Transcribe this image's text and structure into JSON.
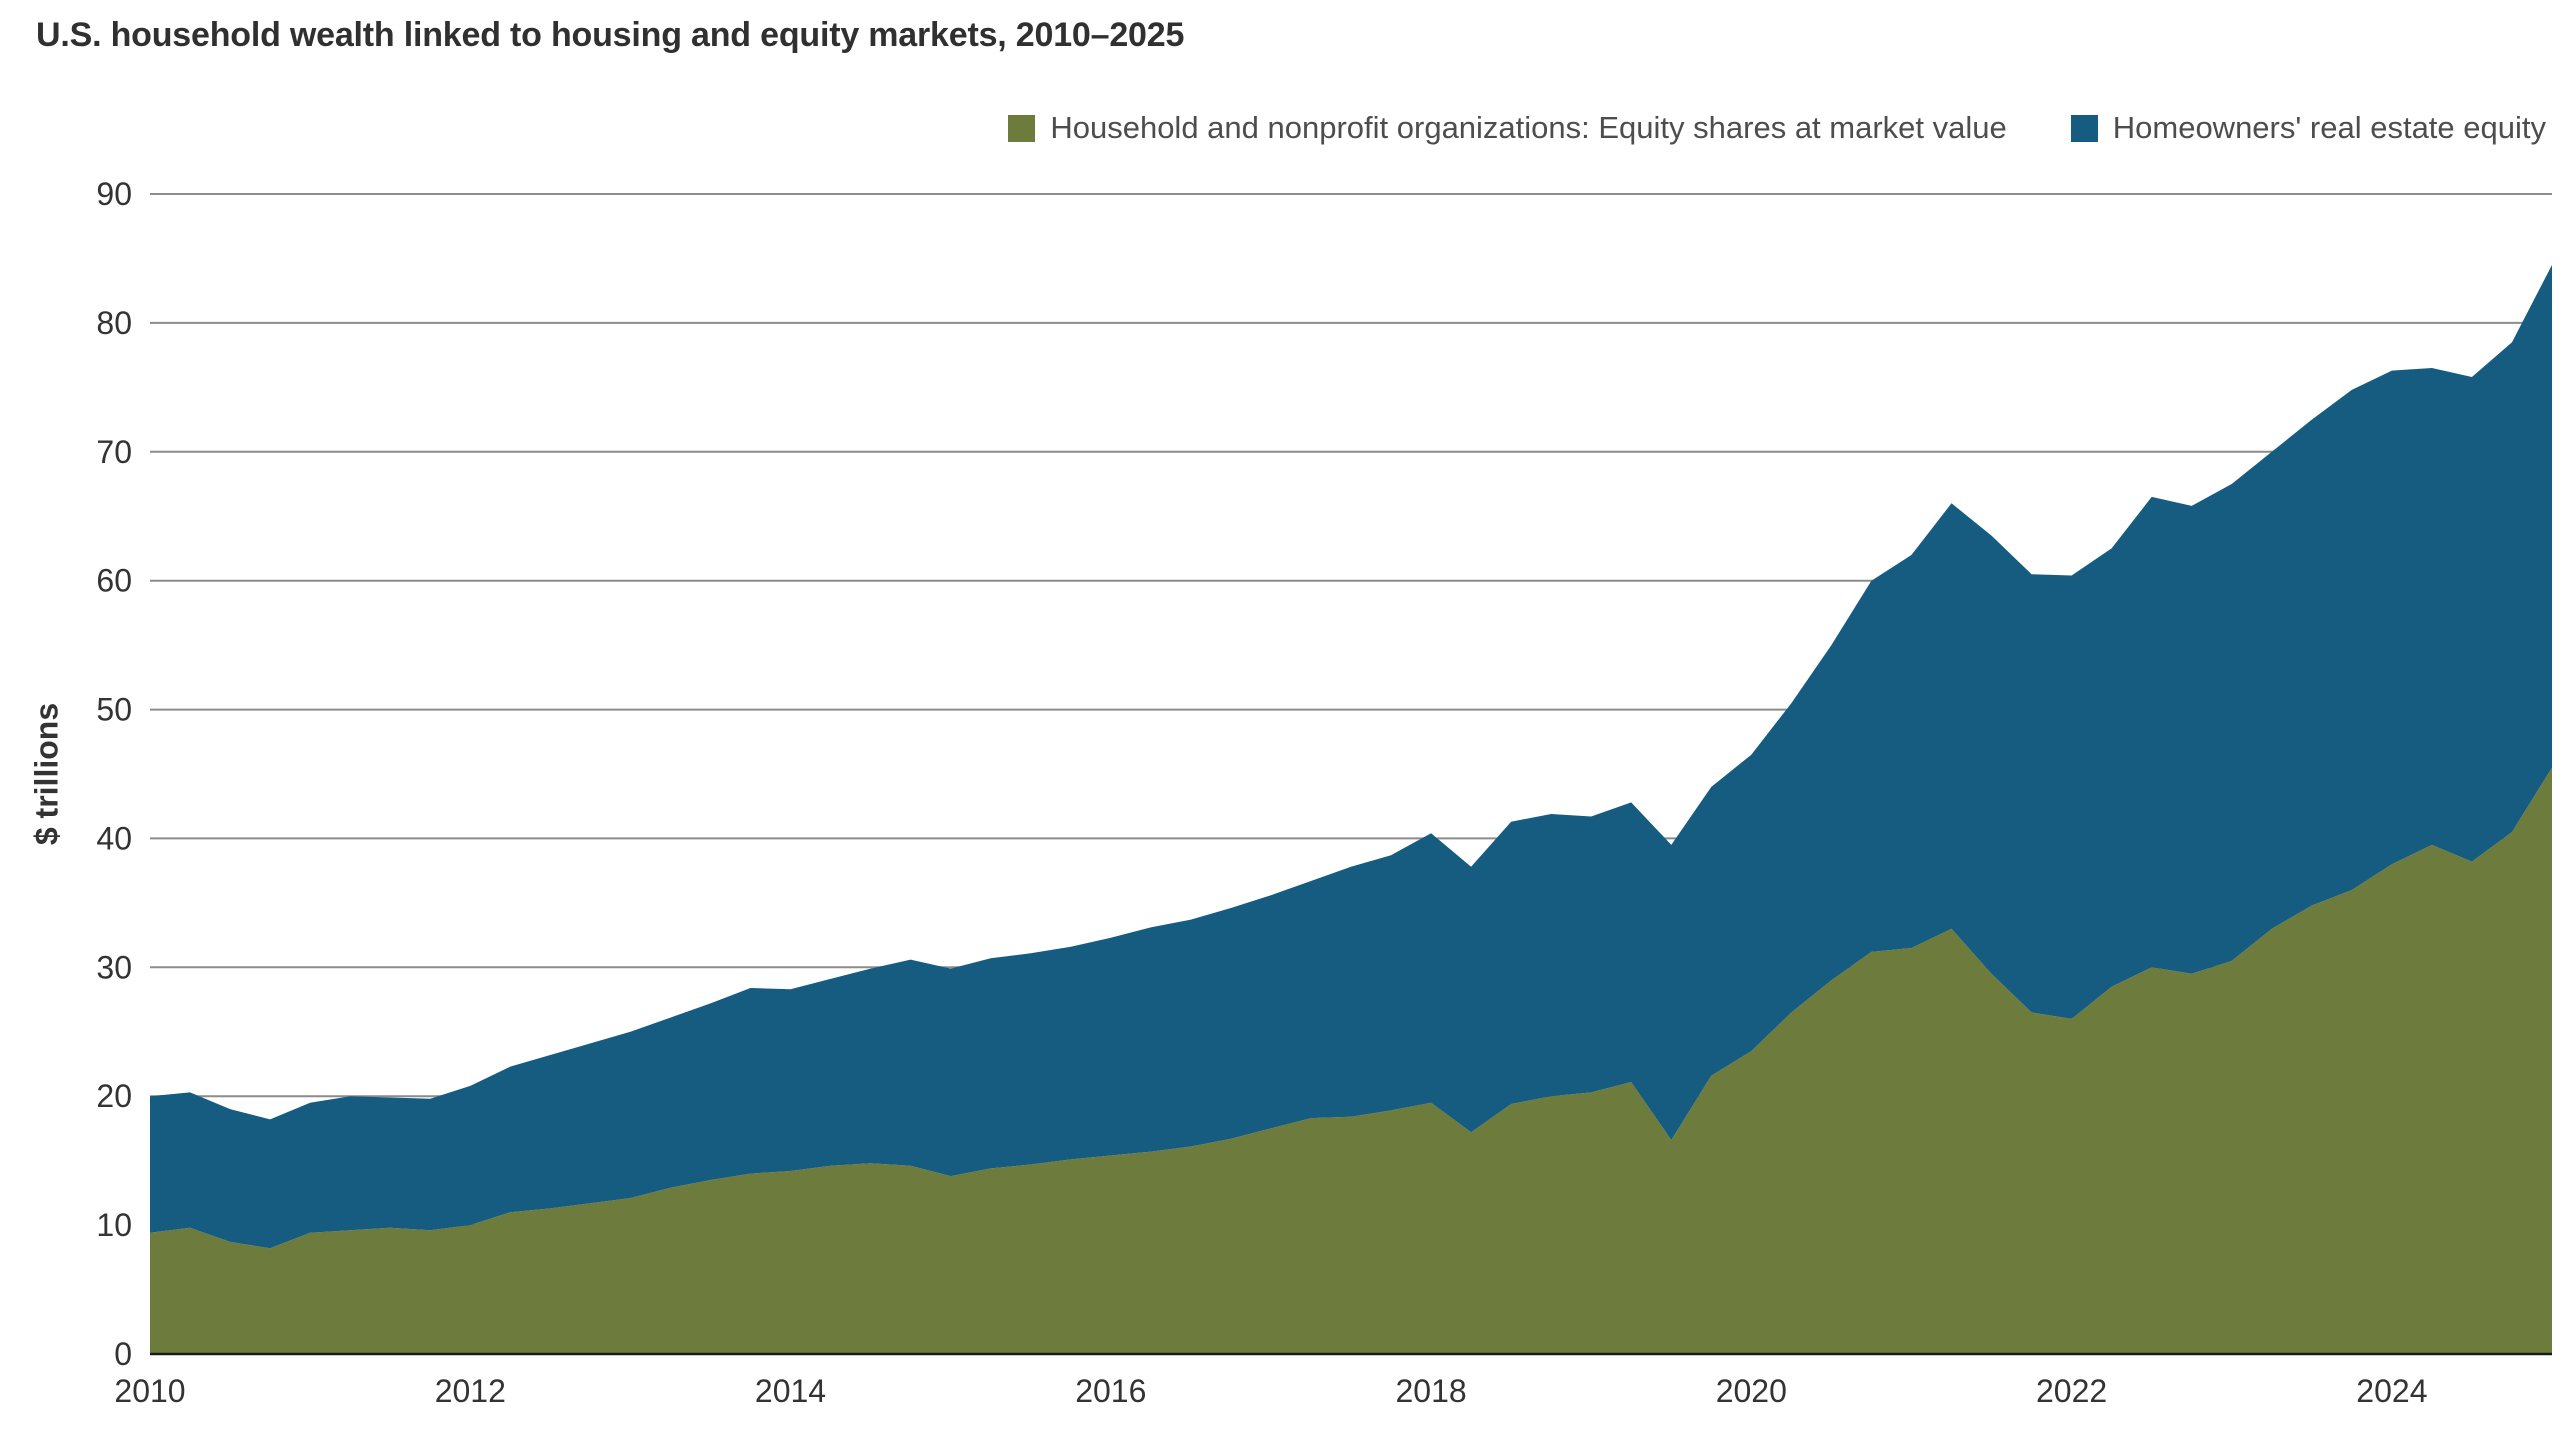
{
  "chart_data": {
    "type": "area",
    "stacked": true,
    "title": "U.S. household wealth linked to housing and equity markets, 2010–2025",
    "xlabel": "",
    "ylabel": "$ trillions",
    "x_range": [
      2010,
      2025
    ],
    "ylim": [
      0,
      90
    ],
    "yticks": [
      0,
      10,
      20,
      30,
      40,
      50,
      60,
      70,
      80,
      90
    ],
    "xticks": [
      2010,
      2012,
      2014,
      2016,
      2018,
      2020,
      2022,
      2024
    ],
    "grid": "horizontal",
    "grid_color": "#8c8c8c",
    "axis_color": "#1a1a1a",
    "background": "#ffffff",
    "legend_position": "top-right",
    "x": [
      2010.0,
      2010.25,
      2010.5,
      2010.75,
      2011.0,
      2011.25,
      2011.5,
      2011.75,
      2012.0,
      2012.25,
      2012.5,
      2012.75,
      2013.0,
      2013.25,
      2013.5,
      2013.75,
      2014.0,
      2014.25,
      2014.5,
      2014.75,
      2015.0,
      2015.25,
      2015.5,
      2015.75,
      2016.0,
      2016.25,
      2016.5,
      2016.75,
      2017.0,
      2017.25,
      2017.5,
      2017.75,
      2018.0,
      2018.25,
      2018.5,
      2018.75,
      2019.0,
      2019.25,
      2019.5,
      2019.75,
      2020.0,
      2020.25,
      2020.5,
      2020.75,
      2021.0,
      2021.25,
      2021.5,
      2021.75,
      2022.0,
      2022.25,
      2022.5,
      2022.75,
      2023.0,
      2023.25,
      2023.5,
      2023.75,
      2024.0,
      2024.25,
      2024.5,
      2024.75,
      2025.0
    ],
    "series": [
      {
        "name": "Household and nonprofit organizations: Equity shares at market value",
        "color": "#6d7c3d",
        "values": [
          9.4,
          9.8,
          8.7,
          8.2,
          9.4,
          9.6,
          9.8,
          9.6,
          10.0,
          11.0,
          11.3,
          11.7,
          12.1,
          12.9,
          13.5,
          14.0,
          14.2,
          14.6,
          14.8,
          14.6,
          13.8,
          14.4,
          14.7,
          15.1,
          15.4,
          15.7,
          16.1,
          16.7,
          17.5,
          18.3,
          18.4,
          18.9,
          19.5,
          17.2,
          19.4,
          20.0,
          20.3,
          21.1,
          16.6,
          21.6,
          23.5,
          26.5,
          29.0,
          31.2,
          31.5,
          33.0,
          29.5,
          26.5,
          26.0,
          28.5,
          30.0,
          29.5,
          30.5,
          33.0,
          34.8,
          36.0,
          38.0,
          39.5,
          38.2,
          40.5,
          45.5
        ]
      },
      {
        "name": "Homeowners' real estate equity",
        "color": "#155c80",
        "values": [
          10.6,
          10.5,
          10.3,
          10.0,
          10.1,
          10.4,
          10.1,
          10.2,
          10.8,
          11.3,
          11.9,
          12.4,
          12.9,
          13.2,
          13.7,
          14.4,
          14.1,
          14.5,
          15.1,
          16.0,
          16.1,
          16.3,
          16.4,
          16.5,
          16.9,
          17.4,
          17.6,
          17.9,
          18.1,
          18.4,
          19.4,
          19.8,
          20.9,
          20.6,
          21.9,
          21.9,
          21.4,
          21.7,
          22.9,
          22.4,
          23.0,
          24.0,
          26.0,
          28.8,
          30.5,
          33.0,
          34.0,
          34.0,
          34.4,
          34.0,
          36.5,
          36.3,
          37.0,
          37.0,
          37.7,
          38.8,
          38.3,
          37.0,
          37.6,
          38.0,
          39.0
        ]
      }
    ]
  }
}
